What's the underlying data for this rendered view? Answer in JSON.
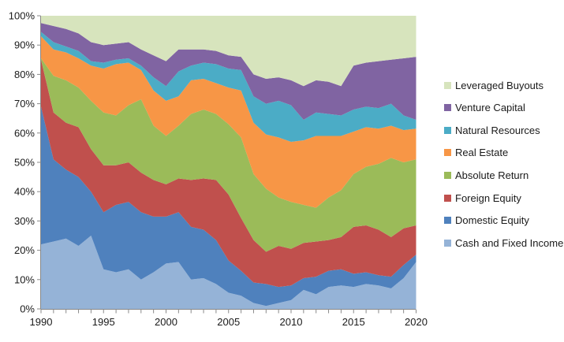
{
  "chart_data": {
    "type": "area",
    "stacking": "percent",
    "title": "",
    "xlabel": "",
    "ylabel": "",
    "x": [
      1990,
      1991,
      1992,
      1993,
      1994,
      1995,
      1996,
      1997,
      1998,
      1999,
      2000,
      2001,
      2002,
      2003,
      2004,
      2005,
      2006,
      2007,
      2008,
      2009,
      2010,
      2011,
      2012,
      2013,
      2014,
      2015,
      2016,
      2017,
      2018,
      2019,
      2020
    ],
    "x_tick_labels": [
      "1990",
      "1995",
      "2000",
      "2005",
      "2010",
      "2015",
      "2020"
    ],
    "x_tick_label_years": [
      1990,
      1995,
      2000,
      2005,
      2010,
      2015,
      2020
    ],
    "y_ticks": [
      "0%",
      "10%",
      "20%",
      "30%",
      "40%",
      "50%",
      "60%",
      "70%",
      "80%",
      "90%",
      "100%"
    ],
    "ylim": [
      0,
      100
    ],
    "grid": false,
    "legend_position": "right",
    "series": [
      {
        "name": "Cash and Fixed Income",
        "color": "#95B3D7",
        "values": [
          22,
          23,
          24,
          21.5,
          25,
          13.5,
          12.5,
          13.5,
          10,
          12.5,
          15.5,
          16,
          10,
          10.5,
          8.5,
          5.5,
          4.5,
          2,
          1,
          2,
          3,
          6.5,
          5,
          7.5,
          8,
          7.5,
          8.5,
          8,
          7,
          10.5,
          16
        ]
      },
      {
        "name": "Domestic Equity",
        "color": "#4F81BD",
        "values": [
          47,
          28,
          23.5,
          23.5,
          15,
          19.5,
          23,
          23,
          23,
          19,
          16,
          17,
          18,
          16.5,
          15,
          11,
          8.5,
          7,
          7.5,
          5.5,
          5,
          4,
          6,
          5.5,
          5.5,
          4.5,
          4,
          3.5,
          4,
          4.5,
          2.5
        ]
      },
      {
        "name": "Foreign Equity",
        "color": "#C0504D",
        "values": [
          16,
          16,
          16,
          17,
          14.5,
          16,
          13.5,
          13.5,
          13.5,
          12.5,
          11,
          11.5,
          16,
          17.5,
          20.5,
          22.5,
          18,
          14.5,
          11,
          14,
          12.5,
          12,
          12,
          10.5,
          11,
          16,
          16,
          15.5,
          13.5,
          12.5,
          10
        ]
      },
      {
        "name": "Absolute Return",
        "color": "#9BBB59",
        "values": [
          0.5,
          12.5,
          14.5,
          13.5,
          16.5,
          18,
          17,
          19.5,
          25,
          18.5,
          16.5,
          18,
          22.5,
          23.5,
          22.5,
          24,
          27.5,
          22.5,
          21.5,
          16.5,
          16,
          13,
          11.5,
          14.5,
          16,
          18,
          20,
          22.5,
          27,
          22.5,
          22.5
        ]
      },
      {
        "name": "Real Estate",
        "color": "#F79646",
        "values": [
          7.5,
          9,
          9.5,
          10,
          12,
          15,
          17.5,
          14.5,
          10,
          12,
          12,
          10,
          11.5,
          10.5,
          10.5,
          12.5,
          16,
          17.5,
          18.5,
          20.5,
          20.5,
          22,
          24.5,
          21,
          18.5,
          14.5,
          13.5,
          12,
          11,
          11,
          10.5
        ]
      },
      {
        "name": "Natural Resources",
        "color": "#4BACC6",
        "values": [
          1.5,
          2.5,
          2,
          2.5,
          1.5,
          2,
          1.5,
          1.5,
          1.5,
          4.5,
          5,
          8.5,
          5,
          5.5,
          6.5,
          6.5,
          7,
          9,
          10.5,
          12.5,
          12.5,
          7,
          8,
          7.5,
          7,
          7.5,
          7,
          7,
          7.5,
          5,
          3
        ]
      },
      {
        "name": "Venture Capital",
        "color": "#8064A2",
        "values": [
          3,
          5.5,
          6,
          6,
          6.5,
          6,
          5.5,
          5.5,
          5.5,
          7.5,
          8.5,
          7.5,
          5.5,
          4.5,
          4.5,
          4.5,
          4.5,
          7.5,
          8.5,
          8,
          8.5,
          11.5,
          11,
          11,
          10,
          15,
          15,
          16,
          15,
          19.5,
          21.5
        ]
      },
      {
        "name": "Leveraged Buyouts",
        "color": "#D7E4BD",
        "values": [
          2.5,
          3.5,
          4.5,
          6,
          9,
          10,
          9.5,
          9,
          11.5,
          13.5,
          15.5,
          11.5,
          11.5,
          11.5,
          12,
          13.5,
          14,
          20,
          21.5,
          21,
          22,
          24,
          22,
          22.5,
          24,
          17,
          16,
          15.5,
          15,
          14.5,
          14
        ]
      }
    ],
    "legend_order_top_to_bottom": [
      "Leveraged Buyouts",
      "Venture Capital",
      "Natural Resources",
      "Real Estate",
      "Absolute Return",
      "Foreign Equity",
      "Domestic Equity",
      "Cash and Fixed Income"
    ],
    "axis_color": "#898989",
    "tick_color": "#898989",
    "label_color": "#1a1a1a"
  }
}
